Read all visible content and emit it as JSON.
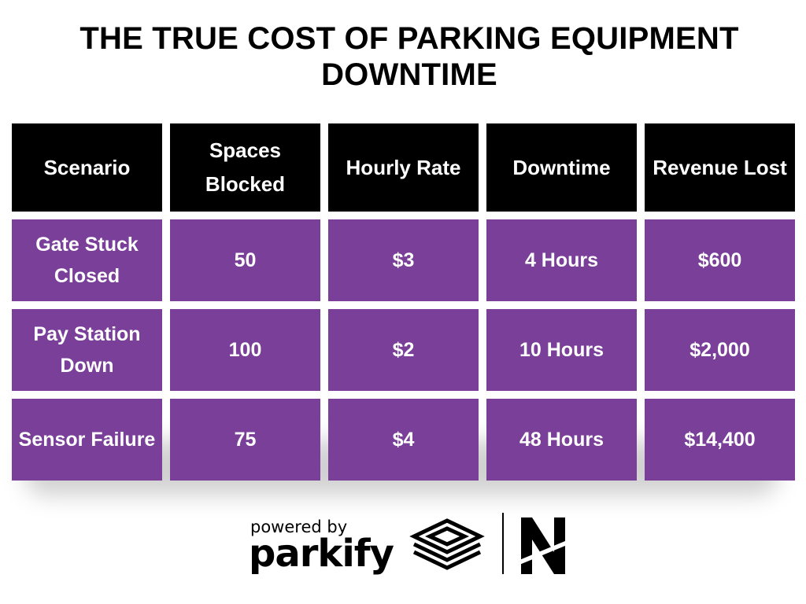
{
  "title": "THE TRUE COST OF PARKING EQUIPMENT DOWNTIME",
  "table": {
    "headers": [
      "Scenario",
      "Spaces Blocked",
      "Hourly Rate",
      "Downtime",
      "Revenue Lost"
    ],
    "rows": [
      [
        "Gate Stuck Closed",
        "50",
        "$3",
        "4 Hours",
        "$600"
      ],
      [
        "Pay Station Down",
        "100",
        "$2",
        "10 Hours",
        "$2,000"
      ],
      [
        "Sensor Failure",
        "75",
        "$4",
        "48 Hours",
        "$14,400"
      ]
    ]
  },
  "footer": {
    "powered_by": "powered by",
    "brand": "parkify",
    "icons": [
      "layers-logo-icon",
      "n-logo-icon"
    ]
  },
  "colors": {
    "header_bg": "#000000",
    "row_bg": "#7a3f98",
    "text_light": "#ffffff"
  }
}
